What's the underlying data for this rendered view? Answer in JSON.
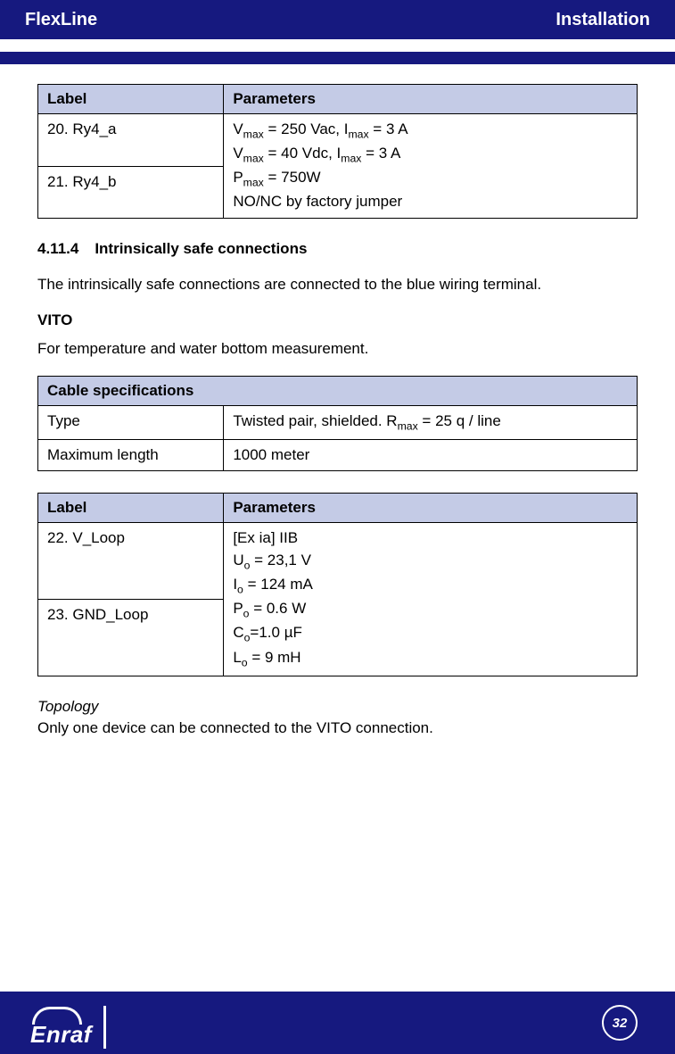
{
  "header": {
    "left": "FlexLine",
    "right": "Installation"
  },
  "colors": {
    "brand": "#16197f",
    "tableHeader": "#c4cbe6",
    "text": "#000000",
    "bg": "#ffffff"
  },
  "table1": {
    "headers": [
      "Label",
      "Parameters"
    ],
    "labels": [
      "20. Ry4_a",
      "21. Ry4_b"
    ],
    "paramsHtml": "V<sub>max</sub> = 250 Vac, I<sub>max</sub> = 3 A<br>V<sub>max</sub> = 40 Vdc, I<sub>max</sub> = 3 A<br>P<sub>max</sub> = 750W<br>NO/NC by factory jumper"
  },
  "sectionNum": "4.11.4",
  "sectionTitle": "Intrinsically safe connections",
  "introText": "The intrinsically safe connections are connected to the blue wiring terminal.",
  "vitoHead": "VITO",
  "vitoText": "For temperature and water bottom measurement.",
  "table2": {
    "header": "Cable specifications",
    "rows": [
      {
        "k": "Type",
        "vHtml": "Twisted pair, shielded. R<sub>max</sub> = 25 q / line"
      },
      {
        "k": "Maximum length",
        "vHtml": "1000 meter"
      }
    ]
  },
  "table3": {
    "headers": [
      "Label",
      "Parameters"
    ],
    "labels": [
      "22. V_Loop",
      "23. GND_Loop"
    ],
    "paramsHtml": "[Ex ia] IIB<br>U<sub>o</sub> = 23,1 V<br>I<sub>o</sub> = 124 mA<br>P<sub>o</sub> = 0.6 W<br>C<sub>o</sub>=1.0 µF<br>L<sub>o</sub> = 9 mH"
  },
  "topoHead": "Topology",
  "topoText": "Only one device can be connected to the VITO connection.",
  "footer": {
    "page": "32",
    "logo": "Enraf"
  }
}
